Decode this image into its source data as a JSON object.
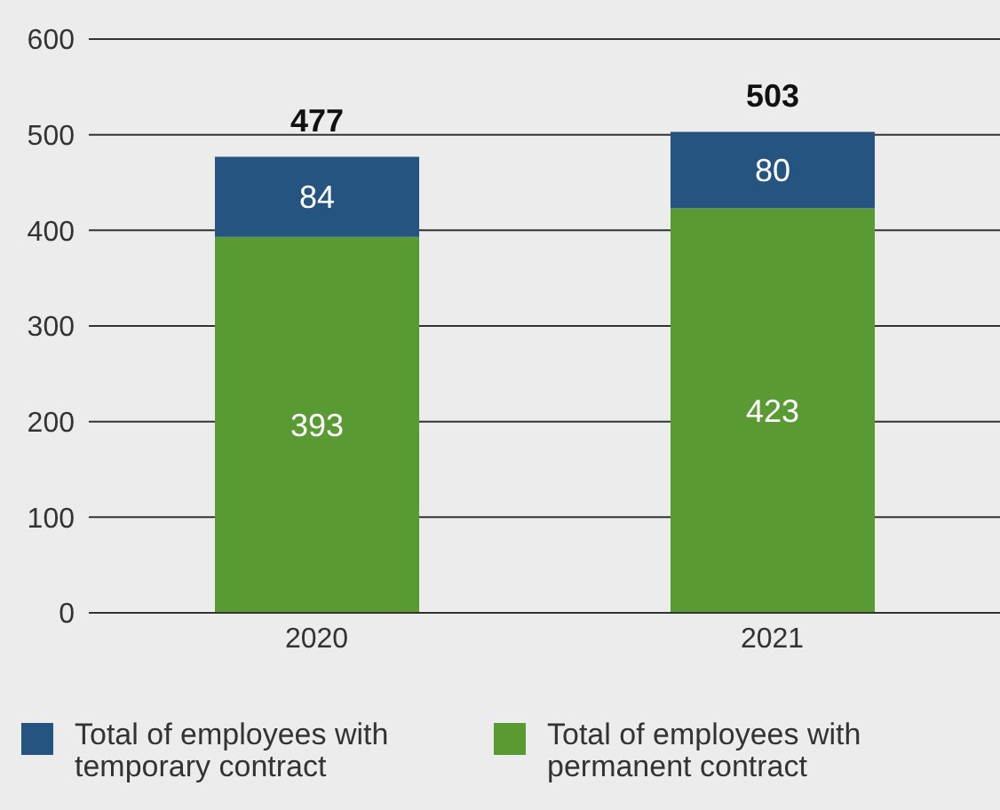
{
  "chart_data": {
    "type": "bar",
    "stacked": true,
    "categories": [
      "2020",
      "2021"
    ],
    "series": [
      {
        "name": "Total of employees with permanent contract",
        "color": "#5a9a32",
        "values": [
          393,
          423
        ]
      },
      {
        "name": "Total of employees with temporary contract",
        "color": "#265480",
        "values": [
          84,
          80
        ]
      }
    ],
    "totals": [
      "477",
      "503"
    ],
    "data_labels": true,
    "ylim": [
      0,
      600
    ],
    "yticks": [
      0,
      100,
      200,
      300,
      400,
      500,
      600
    ],
    "grid": "y",
    "legend": "bottom"
  }
}
